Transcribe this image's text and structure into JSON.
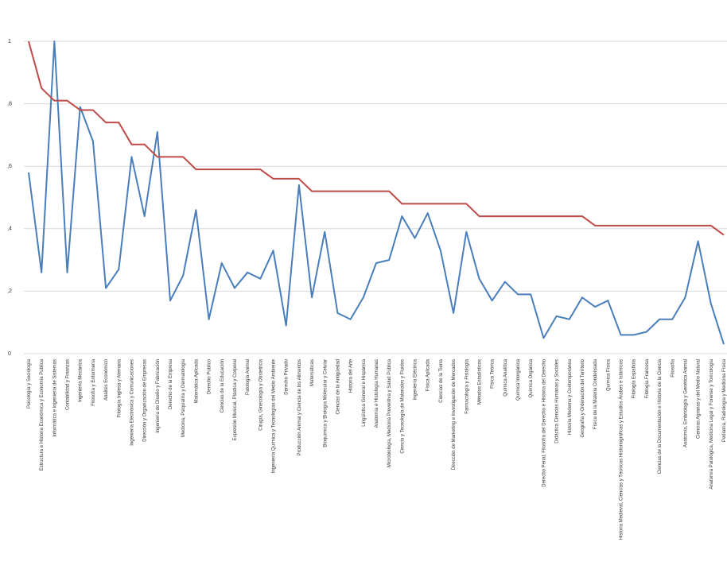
{
  "chart_data": {
    "type": "line",
    "categories": [
      "Psicología y Sociología",
      "Estructura e Historia Económica y Economía Pública",
      "Informática e Ingeniería de Sistemas",
      "Contabilidad y Finanzas",
      "Ingeniería Mecánica",
      "Filosofía y Enfermería",
      "Análisis Económico",
      "Filología Inglesa y Alemana",
      "Ingeniería Electrónica y Comunicaciones",
      "Dirección y Organización de Empresas",
      "Ingeniería de Diseño y Fabricación",
      "Derecho de la Empresa",
      "Medicina, Psiquiatría y Dermatología",
      "Matemática Aplicada",
      "Derecho Público",
      "Ciencias de la Educación",
      "Expresión Musical, Plástica y Corporal",
      "Patología Animal",
      "Cirugía, Ginecología y Obstetricia",
      "Ingeniería Química y Tecnologías del Medio Ambiente",
      "Derecho Privado",
      "Producción Animal y Ciencia de los Alimentos",
      "Matemáticas",
      "Bioquímica y Biología Molecular y Celular",
      "Ciencias de la Antigüedad",
      "Historia del Arte",
      "Lingüística General e Hispánica",
      "Anatomía e Histología Humanas",
      "Microbiología, Medicina Preventiva y Salud Pública",
      "Ciencia y Tecnología de Materiales y Fluidos",
      "Ingeniería Eléctrica",
      "Física Aplicada",
      "Ciencias de la Tierra",
      "Dirección de Marketing e Investigación de Mercados",
      "Farmacología y Fisiología",
      "Métodos Estadísticos",
      "Física Teórica",
      "Química Analítica",
      "Química Inorgánica",
      "Química Orgánica",
      "Derecho Penal, Filosofía del Derecho e Historia del Derecho",
      "Didáctica Ciencias Humanas y Sociales",
      "Historia Moderna y Contemporánea",
      "Geografía y Ordenación del Territorio",
      "Física de la Materia Condensada",
      "Química Física",
      "Historia Medieval, Ciencias y Técnicas Historiográficas y Estudios Árabes e Islámicos",
      "Filología Española",
      "Filología Francesa",
      "Ciencias de la Documentación e Historia de la Ciencia",
      "Filosofía",
      "Anatomía, Embriología y Genética Animal",
      "Ciencias Agrarias y del Medio Natural",
      "Anatomía Patológica, Medicina Legal y Forense y Toxicología",
      "Pediatría, Radiología y Medicina Física"
    ],
    "series": [
      {
        "color": "#4a7ebb",
        "values": [
          0.58,
          0.26,
          1.0,
          0.26,
          0.79,
          0.68,
          0.21,
          0.27,
          0.63,
          0.44,
          0.71,
          0.17,
          0.25,
          0.46,
          0.11,
          0.29,
          0.21,
          0.26,
          0.24,
          0.33,
          0.09,
          0.54,
          0.18,
          0.39,
          0.13,
          0.11,
          0.18,
          0.29,
          0.3,
          0.44,
          0.37,
          0.45,
          0.33,
          0.13,
          0.39,
          0.24,
          0.17,
          0.23,
          0.19,
          0.19,
          0.05,
          0.12,
          0.11,
          0.18,
          0.15,
          0.17,
          0.06,
          0.06,
          0.07,
          0.11,
          0.11,
          0.18,
          0.36,
          0.16,
          0.03
        ]
      },
      {
        "color": "#be4b48",
        "values": [
          1.0,
          0.85,
          0.81,
          0.81,
          0.78,
          0.78,
          0.74,
          0.74,
          0.67,
          0.67,
          0.63,
          0.63,
          0.63,
          0.59,
          0.59,
          0.59,
          0.59,
          0.59,
          0.59,
          0.56,
          0.56,
          0.56,
          0.52,
          0.52,
          0.52,
          0.52,
          0.52,
          0.52,
          0.52,
          0.48,
          0.48,
          0.48,
          0.48,
          0.48,
          0.48,
          0.44,
          0.44,
          0.44,
          0.44,
          0.44,
          0.44,
          0.44,
          0.44,
          0.44,
          0.41,
          0.41,
          0.41,
          0.41,
          0.41,
          0.41,
          0.41,
          0.41,
          0.41,
          0.41,
          0.38
        ]
      }
    ],
    "ylim": [
      0,
      1
    ],
    "yticks": [
      0,
      {
        "value": 0.2,
        "label": ",2"
      },
      {
        "value": 0.4,
        "label": ",4"
      },
      {
        "value": 0.6,
        "label": ",6"
      },
      {
        "value": 0.8,
        "label": ",8"
      },
      1
    ],
    "grid": true
  }
}
